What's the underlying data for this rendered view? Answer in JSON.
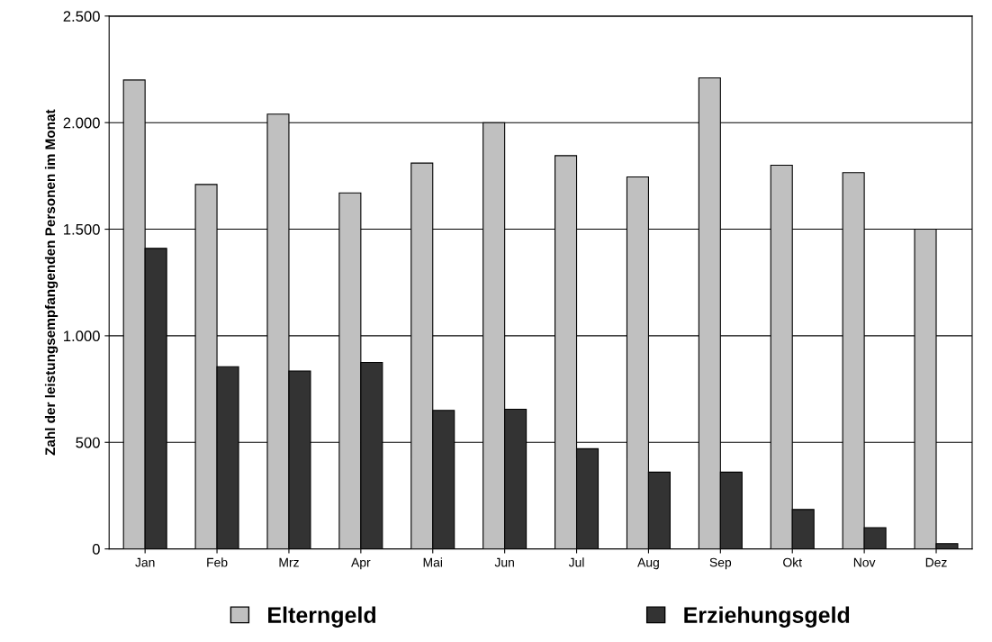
{
  "chart_data": {
    "type": "bar",
    "ylabel": "Zahl der leistungsempfangenden Personen im Monat",
    "categories": [
      "Jan",
      "Feb",
      "Mrz",
      "Apr",
      "Mai",
      "Jun",
      "Jul",
      "Aug",
      "Sep",
      "Okt",
      "Nov",
      "Dez"
    ],
    "series": [
      {
        "name": "Elterngeld",
        "color": "#c0c0c0",
        "values": [
          2200,
          1710,
          2040,
          1670,
          1810,
          2000,
          1845,
          1745,
          2210,
          1800,
          1765,
          1500
        ]
      },
      {
        "name": "Erziehungsgeld",
        "color": "#333333",
        "values": [
          1410,
          855,
          835,
          875,
          650,
          655,
          470,
          360,
          360,
          185,
          100,
          25
        ]
      }
    ],
    "ylim": [
      0,
      2500
    ],
    "yticks": [
      0,
      {
        "value": 500,
        "label": "500"
      },
      {
        "value": 1000,
        "label": "1.000"
      },
      {
        "value": 1500,
        "label": "1.500"
      },
      {
        "value": 2000,
        "label": "2.000"
      },
      {
        "value": 2500,
        "label": "2.500"
      }
    ],
    "grid": "y",
    "legend": "bottom"
  }
}
